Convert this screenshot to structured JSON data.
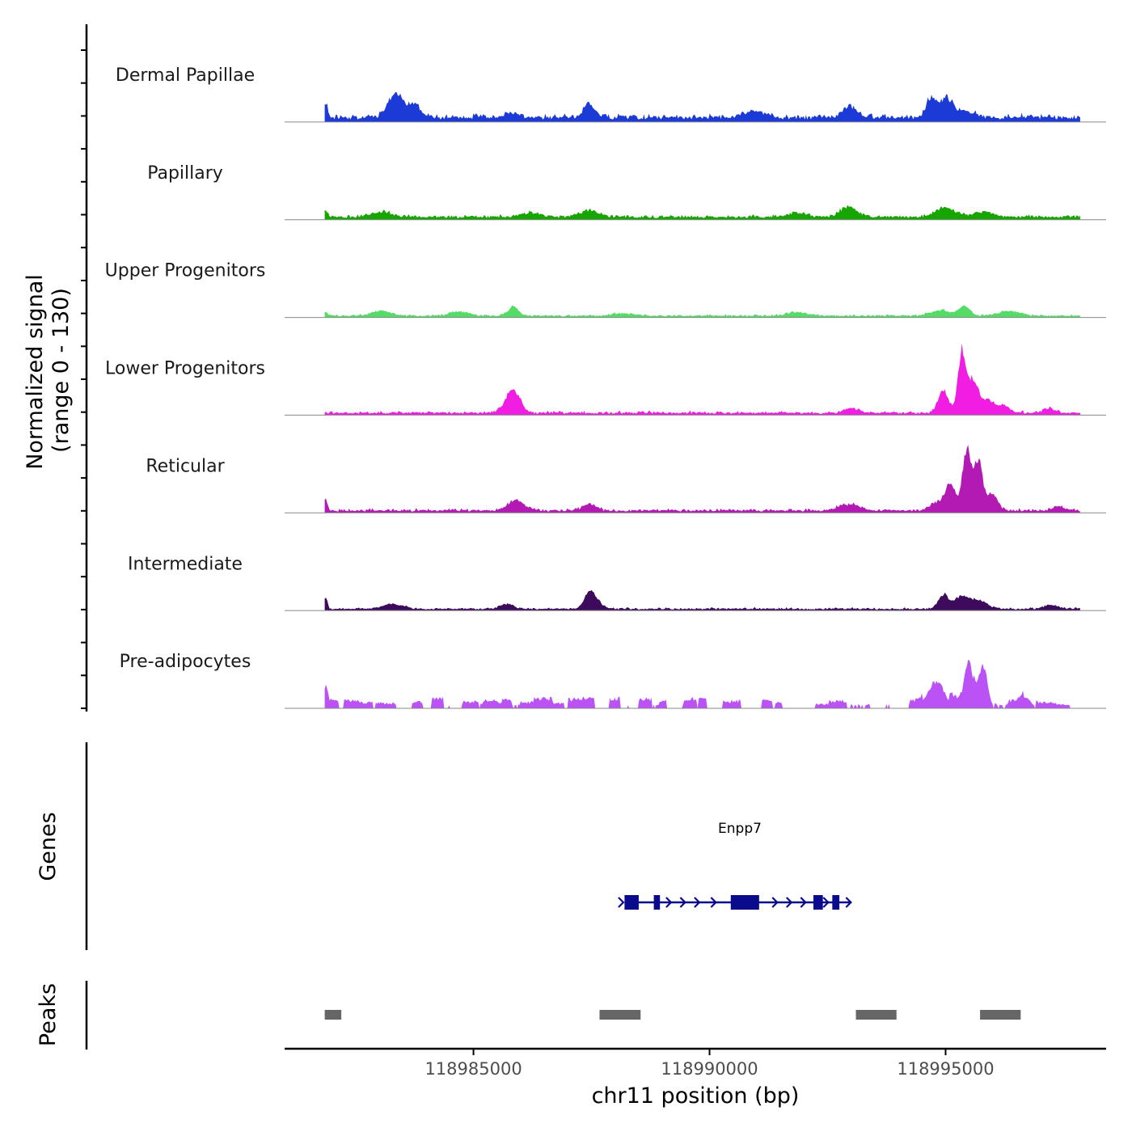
{
  "chart_data": {
    "type": "area",
    "title": "",
    "xlabel": "chr11 position (bp)",
    "xlim": [
      118981000,
      118998400
    ],
    "x_ticks": [
      118985000,
      118990000,
      118995000
    ],
    "x_tick_labels": [
      "118985000",
      "118990000",
      "118995000"
    ],
    "ylabel_line1": "Normalized signal",
    "ylabel_line2": "(range 0 - 130)",
    "ylim": [
      0,
      130
    ],
    "track_start": 118981850,
    "track_end": 118997850,
    "series": [
      {
        "name": "Dermal Papillae",
        "color": "#1c3ad6",
        "baseline": 8,
        "noise": 5,
        "profile": "dense",
        "peaks": [
          [
            118981870,
            22,
            60
          ],
          [
            118983300,
            28,
            200
          ],
          [
            118983450,
            18,
            150
          ],
          [
            118983750,
            22,
            180
          ],
          [
            118985800,
            8,
            200
          ],
          [
            118987450,
            22,
            160
          ],
          [
            118990950,
            10,
            300
          ],
          [
            118992950,
            18,
            200
          ],
          [
            118994700,
            30,
            150
          ],
          [
            118995000,
            28,
            170
          ],
          [
            118995350,
            12,
            300
          ]
        ]
      },
      {
        "name": "Papillary",
        "color": "#17a600",
        "baseline": 5,
        "noise": 3,
        "profile": "dense",
        "peaks": [
          [
            118981870,
            10,
            60
          ],
          [
            118983050,
            8,
            300
          ],
          [
            118986200,
            6,
            300
          ],
          [
            118987450,
            10,
            300
          ],
          [
            118991850,
            6,
            300
          ],
          [
            118992950,
            15,
            250
          ],
          [
            118995000,
            14,
            300
          ],
          [
            118995800,
            8,
            300
          ]
        ]
      },
      {
        "name": "Upper Progenitors",
        "color": "#55dc66",
        "baseline": 3,
        "noise": 2,
        "profile": "dense",
        "peaks": [
          [
            118981870,
            6,
            60
          ],
          [
            118983050,
            7,
            300
          ],
          [
            118984700,
            6,
            300
          ],
          [
            118985850,
            14,
            150
          ],
          [
            118988200,
            4,
            300
          ],
          [
            118991850,
            5,
            300
          ],
          [
            118994900,
            8,
            300
          ],
          [
            118995400,
            15,
            150
          ],
          [
            118996350,
            8,
            300
          ]
        ]
      },
      {
        "name": "Lower Progenitors",
        "color": "#f21de3",
        "baseline": 4,
        "noise": 3,
        "profile": "dense",
        "peaks": [
          [
            118985800,
            30,
            200
          ],
          [
            118985950,
            10,
            150
          ],
          [
            118993000,
            8,
            200
          ],
          [
            118994950,
            35,
            150
          ],
          [
            118995350,
            95,
            120
          ],
          [
            118995600,
            50,
            150
          ],
          [
            118995900,
            18,
            150
          ],
          [
            118996200,
            12,
            200
          ],
          [
            118997200,
            6,
            200
          ]
        ]
      },
      {
        "name": "Reticular",
        "color": "#b31ab3",
        "baseline": 4,
        "noise": 3,
        "profile": "dense",
        "peaks": [
          [
            118981870,
            18,
            50
          ],
          [
            118985900,
            15,
            250
          ],
          [
            118987450,
            10,
            200
          ],
          [
            118992950,
            10,
            300
          ],
          [
            118994800,
            12,
            200
          ],
          [
            118995100,
            40,
            150
          ],
          [
            118995450,
            95,
            130
          ],
          [
            118995700,
            75,
            130
          ],
          [
            118996000,
            25,
            150
          ],
          [
            118997400,
            6,
            200
          ]
        ]
      },
      {
        "name": "Intermediate",
        "color": "#3d0a5c",
        "baseline": 3,
        "noise": 2,
        "profile": "dense",
        "peaks": [
          [
            118981870,
            18,
            50
          ],
          [
            118983300,
            8,
            300
          ],
          [
            118985700,
            8,
            200
          ],
          [
            118987450,
            22,
            150
          ],
          [
            118987600,
            10,
            200
          ],
          [
            118994950,
            22,
            150
          ],
          [
            118995300,
            15,
            200
          ],
          [
            118995650,
            14,
            300
          ],
          [
            118997250,
            6,
            200
          ]
        ]
      },
      {
        "name": "Pre-adipocytes",
        "color": "#bb52f5",
        "baseline": 0,
        "noise": 10,
        "profile": "sparse",
        "peaks": [
          [
            118981880,
            24,
            40
          ],
          [
            118994800,
            40,
            250
          ],
          [
            118995500,
            65,
            130
          ],
          [
            118995800,
            60,
            130
          ],
          [
            118996700,
            16,
            150
          ]
        ]
      }
    ]
  },
  "genes": {
    "label": "Genes",
    "gene_name": "Enpp7",
    "color": "#0a0a8c",
    "start": 118988200,
    "end": 118993000,
    "strand": "+",
    "exons": [
      [
        118988200,
        118988500
      ],
      [
        118988820,
        118988950
      ],
      [
        118990450,
        118991050
      ],
      [
        118992200,
        118992400
      ],
      [
        118992600,
        118992750
      ]
    ],
    "arrows": [
      118989150,
      118989450,
      118989750,
      118990100,
      118991400,
      118991700,
      118992000,
      118992480
    ]
  },
  "peaks": {
    "label": "Peaks",
    "color": "#666666",
    "ranges": [
      [
        118981850,
        118982200
      ],
      [
        118987670,
        118988540
      ],
      [
        118993100,
        118993960
      ],
      [
        118995730,
        118996590
      ]
    ]
  }
}
